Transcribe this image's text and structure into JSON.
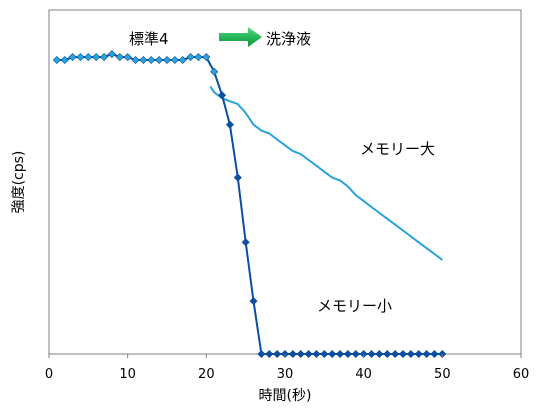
{
  "chart_data": {
    "type": "line",
    "title": "",
    "xlabel": "時間(秒)",
    "ylabel": "強度(cps)",
    "xlim": [
      0,
      60
    ],
    "x_ticks": [
      0,
      10,
      20,
      30,
      40,
      50,
      60
    ],
    "ylim": [
      0,
      100
    ],
    "y_ticks_shown": false,
    "grid": false,
    "legend": "none",
    "annotations": {
      "standard_label": "標準4",
      "wash_label": "洗浄液",
      "large_memory_label": "メモリー大",
      "small_memory_label": "メモリー小"
    },
    "series": [
      {
        "name": "メモリー大",
        "color": "#29a3dc",
        "marker": "none",
        "x": [
          20.5,
          21,
          22,
          23,
          24,
          25,
          26,
          27,
          28,
          29,
          30,
          31,
          32,
          33,
          34,
          35,
          36,
          37,
          38,
          39,
          40,
          41,
          42,
          43,
          44,
          45,
          46,
          47,
          48,
          49,
          50
        ],
        "y": [
          91,
          89,
          87,
          86,
          85,
          82,
          78,
          76,
          75,
          73,
          71,
          69,
          68,
          66,
          64,
          62,
          60,
          59,
          57,
          54,
          52,
          50,
          48,
          46,
          44,
          42,
          40,
          38,
          36,
          34,
          32
        ]
      },
      {
        "name": "メモリー小",
        "color": "#0b4ea2",
        "marker": "diamond",
        "marker_color": "#29a3dc",
        "x": [
          1,
          2,
          3,
          4,
          5,
          6,
          7,
          8,
          9,
          10,
          11,
          12,
          13,
          14,
          15,
          16,
          17,
          18,
          19,
          20,
          21,
          22,
          23,
          24,
          25,
          26,
          27,
          28,
          29,
          30,
          31,
          32,
          33,
          34,
          35,
          36,
          37,
          38,
          39,
          40,
          41,
          42,
          43,
          44,
          45,
          46,
          47,
          48,
          49,
          50
        ],
        "y": [
          100,
          100,
          101,
          101,
          101,
          101,
          101,
          102,
          101,
          101,
          100,
          100,
          100,
          100,
          100,
          100,
          100,
          101,
          101,
          101,
          96,
          88,
          78,
          60,
          38,
          18,
          0,
          0,
          0,
          0,
          0,
          0,
          0,
          0,
          0,
          0,
          0,
          0,
          0,
          0,
          0,
          0,
          0,
          0,
          0,
          0,
          0,
          0,
          0,
          0
        ]
      }
    ]
  }
}
